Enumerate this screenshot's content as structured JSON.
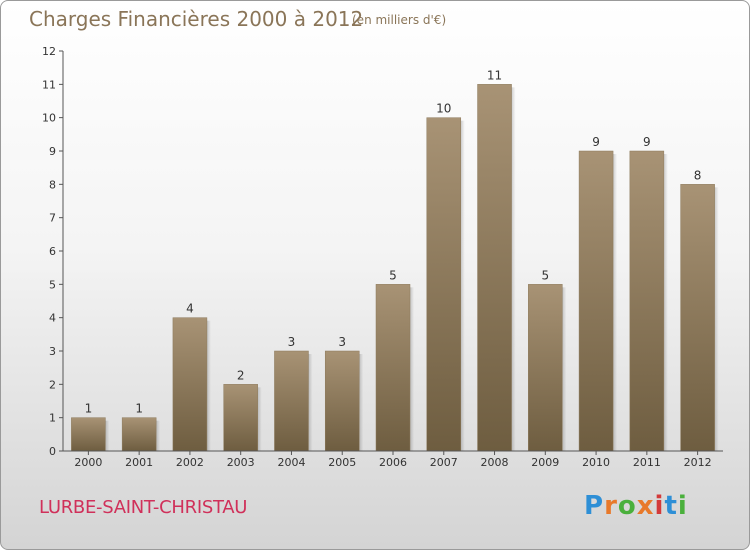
{
  "header": {
    "title": "Charges Financières 2000 à 2012",
    "subtitle": "(en milliers d'€)"
  },
  "footer": {
    "commune": "LURBE-SAINT-CHRISTAU",
    "logo_text": "Proxiti",
    "logo_colors": [
      "#2e8fd6",
      "#e8792a",
      "#4ab03c",
      "#e8792a",
      "#d33a3a",
      "#2e8fd6",
      "#4ab03c"
    ]
  },
  "colors": {
    "bar_top": "#a89375",
    "bar_bottom": "#6e5d40",
    "axis": "#555555",
    "title": "#8a7558",
    "commune": "#d0305a"
  },
  "chart_data": {
    "type": "bar",
    "title": "Charges Financières 2000 à 2012",
    "subtitle": "(en milliers d'€)",
    "categories": [
      "2000",
      "2001",
      "2002",
      "2003",
      "2004",
      "2005",
      "2006",
      "2007",
      "2008",
      "2009",
      "2010",
      "2011",
      "2012"
    ],
    "values": [
      1,
      1,
      4,
      2,
      3,
      3,
      5,
      10,
      11,
      5,
      9,
      9,
      8
    ],
    "ylim": [
      0,
      12
    ],
    "yticks": [
      0,
      1,
      2,
      3,
      4,
      5,
      6,
      7,
      8,
      9,
      10,
      11,
      12
    ],
    "xlabel": "",
    "ylabel": "",
    "grid": false,
    "data_labels": true
  }
}
